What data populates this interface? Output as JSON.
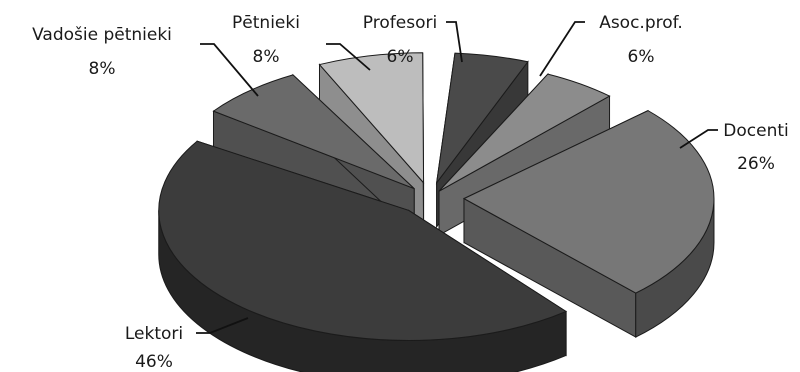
{
  "chart_data": {
    "type": "pie",
    "style": "3d-exploded",
    "title": "",
    "slices": [
      {
        "label": "Profesori",
        "value": 6,
        "value_label": "6%",
        "color": "#4a4a4a"
      },
      {
        "label": "Asoc.prof.",
        "value": 6,
        "value_label": "6%",
        "color": "#8c8c8c"
      },
      {
        "label": "Docenti",
        "value": 26,
        "value_label": "26%",
        "color": "#777777"
      },
      {
        "label": "Lektori",
        "value": 46,
        "value_label": "46%",
        "color": "#3c3c3c"
      },
      {
        "label": "Vadošie pētnieki",
        "value": 8,
        "value_label": "8%",
        "color": "#6a6a6a"
      },
      {
        "label": "Pētnieki",
        "value": 8,
        "value_label": "8%",
        "color": "#bdbdbd"
      }
    ]
  }
}
